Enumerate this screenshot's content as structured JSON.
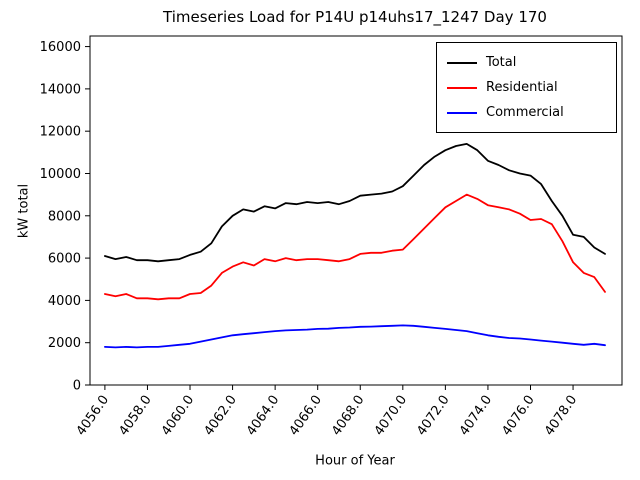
{
  "chart_data": {
    "type": "line",
    "title": "Timeseries Load for P14U p14uhs17_1247  Day 170",
    "xlabel": "Hour of Year",
    "ylabel": "kW total",
    "xlim": [
      4055.3,
      4080.3
    ],
    "ylim": [
      0,
      16500
    ],
    "xticks": [
      4056.0,
      4058.0,
      4060.0,
      4062.0,
      4064.0,
      4066.0,
      4068.0,
      4070.0,
      4072.0,
      4074.0,
      4076.0,
      4078.0
    ],
    "yticks": [
      0,
      2000,
      4000,
      6000,
      8000,
      10000,
      12000,
      14000,
      16000
    ],
    "grid": false,
    "legend_position": "upper right",
    "x": [
      4056.0,
      4056.5,
      4057.0,
      4057.5,
      4058.0,
      4058.5,
      4059.0,
      4059.5,
      4060.0,
      4060.5,
      4061.0,
      4061.5,
      4062.0,
      4062.5,
      4063.0,
      4063.5,
      4064.0,
      4064.5,
      4065.0,
      4065.5,
      4066.0,
      4066.5,
      4067.0,
      4067.5,
      4068.0,
      4068.5,
      4069.0,
      4069.5,
      4070.0,
      4070.5,
      4071.0,
      4071.5,
      4072.0,
      4072.5,
      4073.0,
      4073.5,
      4074.0,
      4074.5,
      4075.0,
      4075.5,
      4076.0,
      4076.5,
      4077.0,
      4077.5,
      4078.0,
      4078.5,
      4079.0,
      4079.5
    ],
    "series": [
      {
        "name": "Total",
        "color": "#000000",
        "values": [
          6100,
          5950,
          6050,
          5900,
          5900,
          5850,
          5900,
          5950,
          6150,
          6300,
          6700,
          7500,
          8000,
          8300,
          8200,
          8450,
          8350,
          8600,
          8550,
          8650,
          8600,
          8650,
          8550,
          8700,
          8950,
          9000,
          9050,
          9150,
          9400,
          9900,
          10400,
          10800,
          11100,
          11300,
          11400,
          11100,
          10600,
          10400,
          10150,
          10000,
          9900,
          9500,
          8700,
          8000,
          7100,
          7000,
          6500,
          6200
        ]
      },
      {
        "name": "Residential",
        "color": "#ff0000",
        "values": [
          4300,
          4200,
          4300,
          4100,
          4100,
          4050,
          4100,
          4100,
          4300,
          4350,
          4700,
          5300,
          5600,
          5800,
          5650,
          5950,
          5850,
          6000,
          5900,
          5950,
          5950,
          5900,
          5850,
          5950,
          6200,
          6250,
          6250,
          6350,
          6400,
          6900,
          7400,
          7900,
          8400,
          8700,
          9000,
          8800,
          8500,
          8400,
          8300,
          8100,
          7800,
          7850,
          7600,
          6800,
          5800,
          5300,
          5100,
          4400
        ]
      },
      {
        "name": "Commercial",
        "color": "#0000ff",
        "values": [
          1800,
          1780,
          1800,
          1780,
          1800,
          1800,
          1850,
          1900,
          1950,
          2050,
          2150,
          2250,
          2350,
          2400,
          2450,
          2500,
          2550,
          2580,
          2600,
          2620,
          2650,
          2660,
          2700,
          2720,
          2750,
          2760,
          2780,
          2800,
          2820,
          2800,
          2750,
          2700,
          2650,
          2600,
          2550,
          2450,
          2350,
          2280,
          2220,
          2200,
          2150,
          2100,
          2050,
          2000,
          1950,
          1900,
          1950,
          1880
        ]
      }
    ]
  }
}
